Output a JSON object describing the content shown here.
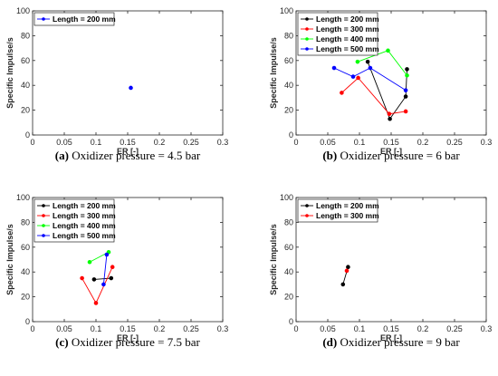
{
  "chart_data": [
    {
      "type": "line",
      "panel": "a",
      "caption_letter": "(a)",
      "caption_text": " Oxidizer pressure = 4.5 bar",
      "xlabel": "ER [-]",
      "ylabel": "Specific Impulse/s",
      "xlim": [
        0,
        0.3
      ],
      "ylim": [
        0,
        100
      ],
      "xticks": [
        "0",
        "0.05",
        "0.1",
        "0.15",
        "0.2",
        "0.25",
        "0.3"
      ],
      "yticks": [
        "0",
        "20",
        "40",
        "60",
        "80",
        "100"
      ],
      "grid": false,
      "legend_position": "top-left",
      "series": [
        {
          "name": "Length = 200 mm",
          "color": "#0000ff",
          "x": [
            0.155
          ],
          "y": [
            38
          ]
        }
      ]
    },
    {
      "type": "line",
      "panel": "b",
      "caption_letter": "(b)",
      "caption_text": " Oxidizer pressure = 6 bar",
      "xlabel": "ER [-]",
      "ylabel": "Specific Impulse/s",
      "xlim": [
        0,
        0.3
      ],
      "ylim": [
        0,
        100
      ],
      "xticks": [
        "0",
        "0.05",
        "0.1",
        "0.15",
        "0.2",
        "0.25",
        "0.3"
      ],
      "yticks": [
        "0",
        "20",
        "40",
        "60",
        "80",
        "100"
      ],
      "grid": false,
      "legend_position": "top-left",
      "series": [
        {
          "name": "Length = 200 mm",
          "color": "#000000",
          "x": [
            0.113,
            0.148,
            0.173,
            0.175
          ],
          "y": [
            59,
            13,
            31,
            53
          ]
        },
        {
          "name": "Length = 300 mm",
          "color": "#ff0000",
          "x": [
            0.072,
            0.098,
            0.147,
            0.173
          ],
          "y": [
            34,
            46,
            17,
            19
          ]
        },
        {
          "name": "Length = 400 mm",
          "color": "#00ff00",
          "x": [
            0.097,
            0.145,
            0.175
          ],
          "y": [
            59,
            68,
            48
          ]
        },
        {
          "name": "Length = 500 mm",
          "color": "#0000ff",
          "x": [
            0.06,
            0.09,
            0.117,
            0.173
          ],
          "y": [
            54,
            47,
            54,
            36
          ]
        }
      ]
    },
    {
      "type": "line",
      "panel": "c",
      "caption_letter": "(c)",
      "caption_text": " Oxidizer pressure = 7.5 bar",
      "xlabel": "ER [-]",
      "ylabel": "Specific Impulse/s",
      "xlim": [
        0,
        0.3
      ],
      "ylim": [
        0,
        100
      ],
      "xticks": [
        "0",
        "0.05",
        "0.1",
        "0.15",
        "0.2",
        "0.25",
        "0.3"
      ],
      "yticks": [
        "0",
        "20",
        "40",
        "60",
        "80",
        "100"
      ],
      "grid": false,
      "legend_position": "top-left",
      "series": [
        {
          "name": "Length = 200 mm",
          "color": "#000000",
          "x": [
            0.097,
            0.124
          ],
          "y": [
            34,
            35
          ]
        },
        {
          "name": "Length = 300 mm",
          "color": "#ff0000",
          "x": [
            0.078,
            0.1,
            0.126
          ],
          "y": [
            35,
            15,
            44
          ]
        },
        {
          "name": "Length = 400 mm",
          "color": "#00ff00",
          "x": [
            0.09,
            0.12
          ],
          "y": [
            48,
            56
          ]
        },
        {
          "name": "Length = 500 mm",
          "color": "#0000ff",
          "x": [
            0.112,
            0.117
          ],
          "y": [
            30,
            54
          ]
        }
      ]
    },
    {
      "type": "line",
      "panel": "d",
      "caption_letter": "(d)",
      "caption_text": " Oxidizer pressure = 9 bar",
      "xlabel": "ER [-]",
      "ylabel": "Specific Impulse/s",
      "xlim": [
        0,
        0.3
      ],
      "ylim": [
        0,
        100
      ],
      "xticks": [
        "0",
        "0.05",
        "0.1",
        "0.15",
        "0.2",
        "0.25",
        "0.3"
      ],
      "yticks": [
        "0",
        "20",
        "40",
        "60",
        "80",
        "100"
      ],
      "grid": false,
      "legend_position": "top-left",
      "series": [
        {
          "name": "Length = 200 mm",
          "color": "#000000",
          "x": [
            0.074,
            0.082
          ],
          "y": [
            30,
            44
          ]
        },
        {
          "name": "Length = 300 mm",
          "color": "#ff0000",
          "x": [
            0.08
          ],
          "y": [
            41
          ]
        }
      ]
    }
  ]
}
